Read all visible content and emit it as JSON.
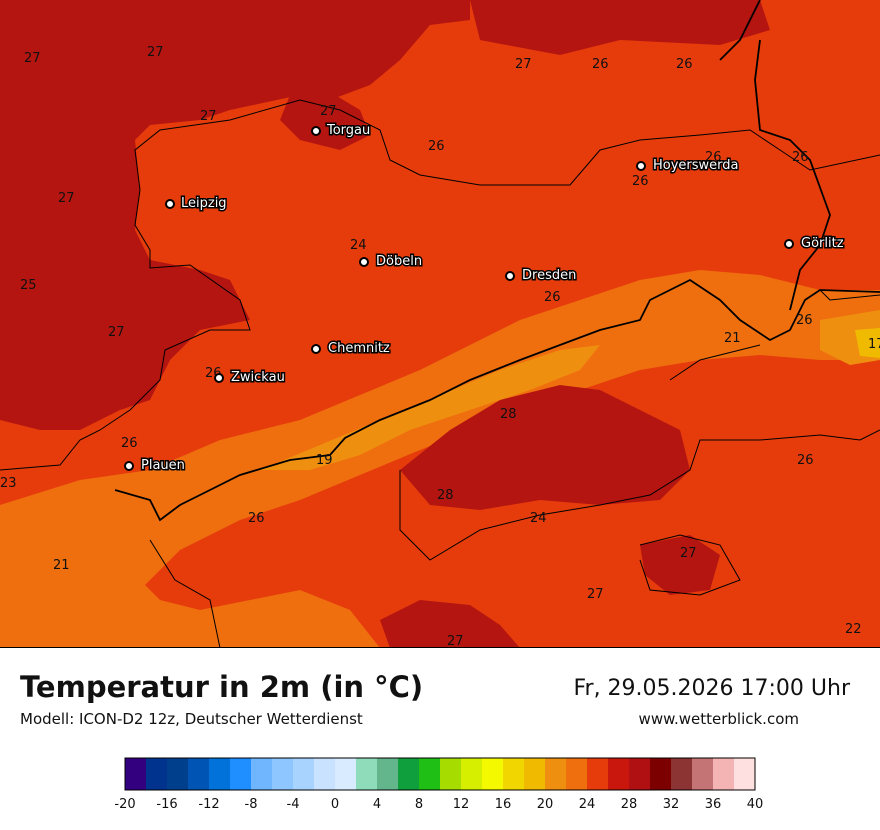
{
  "title": "Temperatur in 2m (in °C)",
  "model": "Modell: ICON-D2 12z, Deutscher Wetterdienst",
  "datetime": "Fr, 29.05.2026 17:00 Uhr",
  "website": "www.wetterblick.com",
  "cities": [
    {
      "name": "Torgau"
    },
    {
      "name": "Leipzig"
    },
    {
      "name": "Hoyerswerda"
    },
    {
      "name": "Görlitz"
    },
    {
      "name": "Döbeln"
    },
    {
      "name": "Dresden"
    },
    {
      "name": "Chemnitz"
    },
    {
      "name": "Zwickau"
    },
    {
      "name": "Plauen"
    }
  ],
  "values": [
    "27",
    "27",
    "27",
    "27",
    "27",
    "26",
    "26",
    "26",
    "26",
    "26",
    "26",
    "27",
    "24",
    "26",
    "21",
    "25",
    "27",
    "26",
    "17",
    "26",
    "28",
    "19",
    "23",
    "28",
    "24",
    "26",
    "26",
    "27",
    "21",
    "27",
    "27",
    "22"
  ],
  "legend": {
    "ticks": [
      "-20",
      "-16",
      "-12",
      "-8",
      "-4",
      "0",
      "4",
      "8",
      "12",
      "16",
      "20",
      "24",
      "28",
      "32",
      "36",
      "40"
    ],
    "colors": [
      "#33007f",
      "#00338e",
      "#003f8c",
      "#0055b4",
      "#0072d9",
      "#1f8eff",
      "#6fb6ff",
      "#8ec6ff",
      "#a9d3ff",
      "#c9e2ff",
      "#d8ebff",
      "#8fdcbb",
      "#63b58c",
      "#0f9f3d",
      "#1fbf16",
      "#a6dc00",
      "#d6ef00",
      "#f5f900",
      "#f2d600",
      "#f0ba00",
      "#ef8f0f",
      "#ef6f0f",
      "#e63c0c",
      "#c9170d",
      "#b01011",
      "#7d0000",
      "#8c3434",
      "#c47474",
      "#f5b4b4",
      "#ffe0e0"
    ]
  }
}
